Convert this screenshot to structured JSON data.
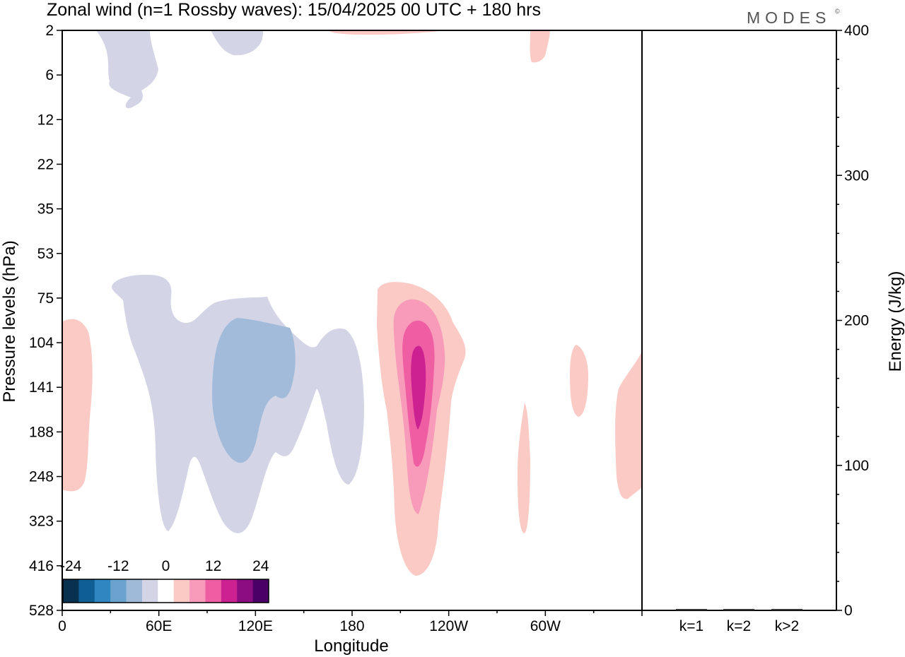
{
  "title": "Zonal wind (n=1 Rossby waves):  15/04/2025  00 UTC  + 180 hrs",
  "logo": "MODES",
  "logo_mark": "©",
  "chart_data": {
    "type": "heatmap",
    "xlabel": "Longitude",
    "ylabel": "Pressure levels (hPa)",
    "x_ticks": [
      "0",
      "60E",
      "120E",
      "180",
      "120W",
      "60W"
    ],
    "x_tick_values": [
      0,
      60,
      120,
      180,
      240,
      300
    ],
    "xlim": [
      0,
      360
    ],
    "y_ticks": [
      "2",
      "6",
      "12",
      "22",
      "35",
      "53",
      "75",
      "104",
      "141",
      "188",
      "248",
      "323",
      "416",
      "528"
    ],
    "y_scale": "log-pressure, inverted",
    "colorbar": {
      "labels": [
        "-24",
        "-12",
        "0",
        "12",
        "24"
      ],
      "label_values": [
        -24,
        -12,
        0,
        12,
        24
      ],
      "colors": [
        "#08304f",
        "#0f5f95",
        "#2f86c0",
        "#6aa4ce",
        "#9fb9d9",
        "#d3d5e7",
        "#ffffff",
        "#fbcac5",
        "#f89bbb",
        "#ef5ea2",
        "#cc2191",
        "#8c0c81",
        "#4b0068"
      ]
    },
    "energy_panel": {
      "ylabel": "Energy (J/kg)",
      "ylim": [
        0,
        400
      ],
      "y_ticks": [
        "0",
        "100",
        "200",
        "300",
        "400"
      ],
      "y_tick_values": [
        0,
        100,
        200,
        300,
        400
      ],
      "categories": [
        "k=1",
        "k=2",
        "k>2"
      ],
      "values": [
        0.5,
        0.5,
        0.5
      ]
    }
  }
}
